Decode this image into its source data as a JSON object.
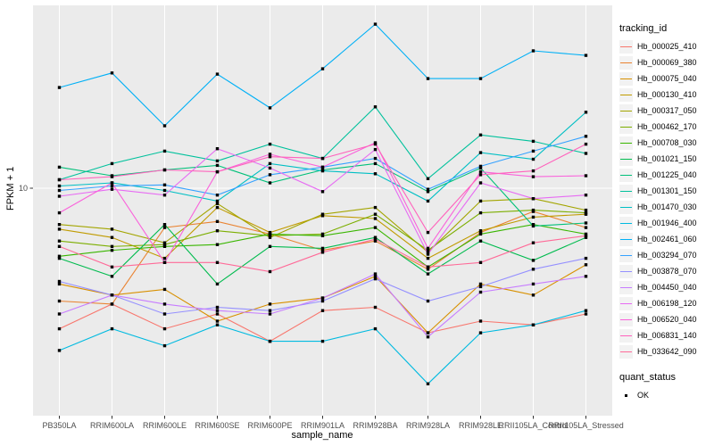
{
  "chart_data": {
    "type": "line",
    "title": "",
    "xlabel": "sample_name",
    "ylabel": "FPKM + 1",
    "yscale": "log10",
    "ylim": [
      1.5,
      50
    ],
    "y_tick_labels": [
      "10"
    ],
    "grid": "major-only",
    "legend_position": "right",
    "legend_title": "tracking_id",
    "point_legend": {
      "title": "quant_status",
      "items": [
        "OK"
      ]
    },
    "point_color": "#000000",
    "panel_bg": "#EBEBEB",
    "grid_color": "#FFFFFF",
    "tick_text_color": "#4D4D4D",
    "categories": [
      "PB350LA",
      "RRIM600LA",
      "RRIM600LE",
      "RRIM600SE",
      "RRIM600PE",
      "RRIM901LA",
      "RRIM928BA",
      "RRIM928LA",
      "RRIM928LE",
      "RRII105LA_Control",
      "RRII105LA_Stressed"
    ],
    "series": [
      {
        "name": "Hb_000025_410",
        "color": "#F8766D",
        "values": [
          2.8,
          3.5,
          2.8,
          3.2,
          2.5,
          3.3,
          3.4,
          2.7,
          3.0,
          2.9,
          3.2
        ]
      },
      {
        "name": "Hb_000069_380",
        "color": "#EA8331",
        "values": [
          3.6,
          3.5,
          7.0,
          7.4,
          6.6,
          5.7,
          6.2,
          4.8,
          6.7,
          8.1,
          7.0
        ]
      },
      {
        "name": "Hb_000075_040",
        "color": "#D89000",
        "values": [
          4.2,
          3.8,
          4.0,
          3.0,
          3.5,
          3.7,
          4.5,
          2.7,
          4.2,
          3.8,
          5.0
        ]
      },
      {
        "name": "Hb_000130_410",
        "color": "#C09B00",
        "values": [
          6.9,
          6.4,
          5.3,
          8.4,
          6.7,
          7.8,
          7.6,
          5.3,
          6.8,
          7.7,
          7.9
        ]
      },
      {
        "name": "Hb_000317_050",
        "color": "#A3A500",
        "values": [
          7.2,
          6.9,
          6.1,
          8.7,
          6.4,
          7.9,
          8.4,
          5.6,
          8.9,
          9.1,
          8.2
        ]
      },
      {
        "name": "Hb_000462_170",
        "color": "#7CAE00",
        "values": [
          6.2,
          5.9,
          6.0,
          6.8,
          6.5,
          6.6,
          7.9,
          5.7,
          8.0,
          8.2,
          8.0
        ]
      },
      {
        "name": "Hb_000708_030",
        "color": "#39B600",
        "values": [
          5.4,
          5.7,
          5.9,
          6.0,
          6.6,
          6.5,
          7.0,
          4.9,
          6.6,
          7.2,
          6.6
        ]
      },
      {
        "name": "Hb_001021_150",
        "color": "#00BB4E",
        "values": [
          5.3,
          4.5,
          7.2,
          4.2,
          5.9,
          5.8,
          6.4,
          4.6,
          6.2,
          5.2,
          6.4
        ]
      },
      {
        "name": "Hb_001225_040",
        "color": "#00C079",
        "values": [
          12.1,
          11.2,
          11.8,
          12.3,
          10.5,
          11.8,
          12.5,
          9.7,
          12.0,
          7.1,
          7.3
        ]
      },
      {
        "name": "Hb_001301_150",
        "color": "#00C19C",
        "values": [
          10.8,
          12.5,
          14.0,
          12.8,
          14.9,
          13.1,
          20.9,
          10.9,
          16.2,
          15.3,
          13.7
        ]
      },
      {
        "name": "Hb_001470_030",
        "color": "#00BFC4",
        "values": [
          10.2,
          10.5,
          9.8,
          8.9,
          12.5,
          11.7,
          11.4,
          8.9,
          13.8,
          13.0,
          19.9
        ]
      },
      {
        "name": "Hb_001946_400",
        "color": "#00BAE0",
        "values": [
          2.3,
          2.8,
          2.4,
          2.9,
          2.5,
          2.5,
          2.8,
          1.7,
          2.7,
          2.9,
          3.3
        ]
      },
      {
        "name": "Hb_002461_060",
        "color": "#00B0F6",
        "values": [
          24.9,
          28.4,
          17.6,
          28.1,
          20.7,
          29.5,
          44.2,
          27.0,
          27.0,
          34.7,
          33.3
        ]
      },
      {
        "name": "Hb_003294_070",
        "color": "#35A2FF",
        "values": [
          9.8,
          10.2,
          10.3,
          9.4,
          11.3,
          12.1,
          13.1,
          9.9,
          12.2,
          14.0,
          16.0
        ]
      },
      {
        "name": "Hb_003878_070",
        "color": "#9590FF",
        "values": [
          4.3,
          3.8,
          3.2,
          3.4,
          3.3,
          3.6,
          4.4,
          3.6,
          4.1,
          4.8,
          5.3
        ]
      },
      {
        "name": "Hb_004450_040",
        "color": "#C77CFF",
        "values": [
          3.2,
          3.8,
          3.5,
          3.3,
          3.2,
          3.7,
          4.6,
          2.6,
          3.9,
          4.2,
          4.5
        ]
      },
      {
        "name": "Hb_006198_120",
        "color": "#E76BF3",
        "values": [
          9.3,
          9.9,
          9.4,
          14.3,
          12.0,
          9.7,
          14.2,
          5.5,
          10.5,
          9.1,
          9.4
        ]
      },
      {
        "name": "Hb_006520_040",
        "color": "#FA62DB",
        "values": [
          8.0,
          10.5,
          5.1,
          11.6,
          13.6,
          12.1,
          15.1,
          5.8,
          11.6,
          11.1,
          11.2
        ]
      },
      {
        "name": "Hb_006831_140",
        "color": "#FF62BC",
        "values": [
          10.8,
          11.1,
          11.8,
          11.6,
          13.3,
          13.1,
          14.9,
          6.7,
          11.3,
          11.7,
          14.9
        ]
      },
      {
        "name": "Hb_033642_090",
        "color": "#FF6A98",
        "values": [
          5.9,
          4.9,
          5.1,
          5.1,
          4.7,
          5.6,
          6.3,
          4.9,
          5.1,
          6.1,
          6.5
        ]
      }
    ]
  }
}
